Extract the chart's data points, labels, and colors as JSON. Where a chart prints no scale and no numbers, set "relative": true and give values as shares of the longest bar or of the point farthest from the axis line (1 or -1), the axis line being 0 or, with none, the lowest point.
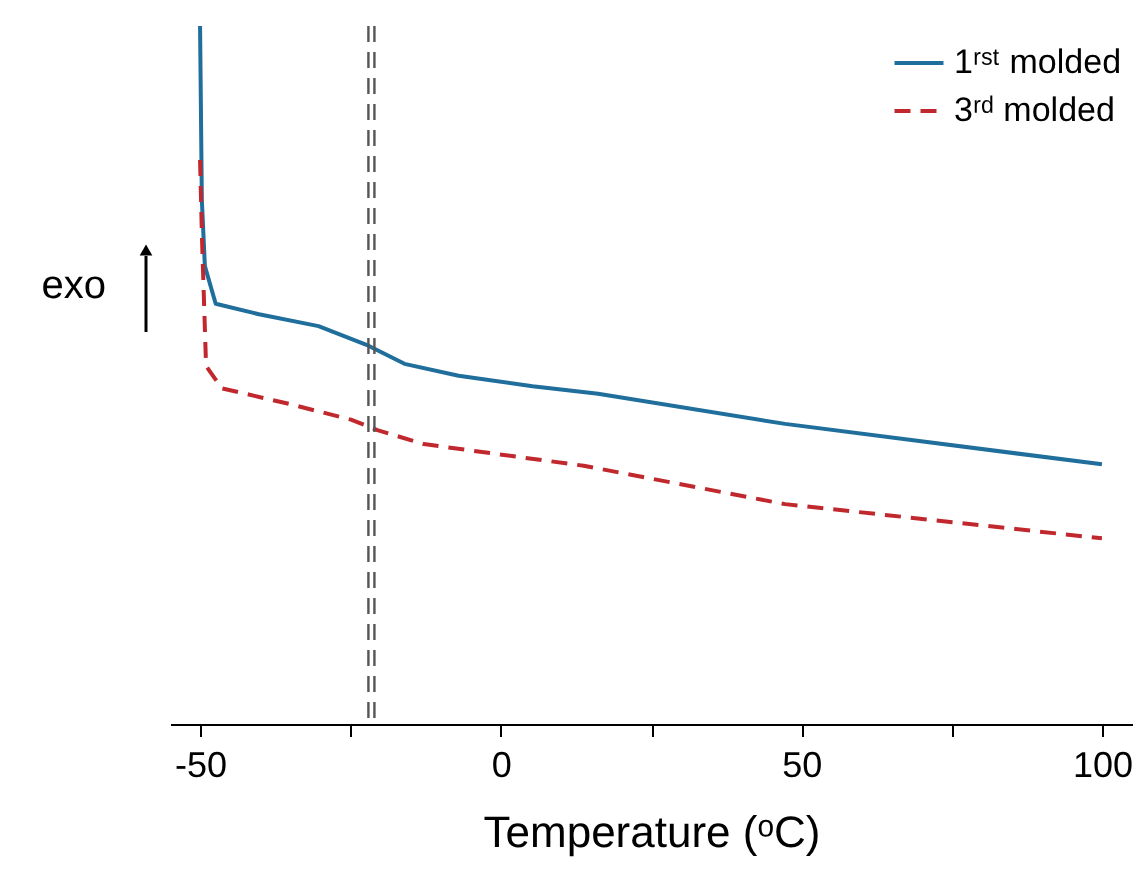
{
  "chart_data": {
    "type": "line",
    "relative": true,
    "xlabel": "Temperature (ᵒC)",
    "xlim": [
      -55,
      105
    ],
    "xticks": [
      -50,
      {
        "value": -25,
        "label": null
      },
      0,
      {
        "value": 25,
        "label": null
      },
      50,
      {
        "value": 75,
        "label": null
      },
      100
    ],
    "grid": false,
    "legend": "top right",
    "annotations": [
      "exo"
    ],
    "ref_lines": [
      {
        "axis": "x",
        "value": -22,
        "color": "#555555",
        "line_style": "dashed"
      },
      {
        "axis": "x",
        "value": -21,
        "color": "#555555",
        "line_style": "dashed"
      }
    ],
    "series": [
      {
        "name": "1ʳˢᵗ molded",
        "color": "#1f6e9c",
        "line_style": "solid",
        "x": [
          -50,
          -49.7,
          -49.2,
          -47.4,
          -40.2,
          -30.3,
          -22,
          -16,
          -7,
          5.3,
          16.2,
          47.3,
          100
        ],
        "values": [
          1.0,
          0.75,
          0.656,
          0.602,
          0.587,
          0.57,
          0.542,
          0.516,
          0.499,
          0.484,
          0.473,
          0.43,
          0.372
        ]
      },
      {
        "name": "3ʳᵈ molded",
        "color": "#c0282d",
        "line_style": "dashed",
        "x": [
          -50,
          -49.7,
          -49,
          -46.4,
          -34.9,
          -24.9,
          -20.5,
          -12.8,
          13.8,
          47.3,
          100
        ],
        "values": [
          0.808,
          0.702,
          0.513,
          0.481,
          0.458,
          0.436,
          0.421,
          0.401,
          0.37,
          0.315,
          0.266
        ]
      }
    ]
  }
}
